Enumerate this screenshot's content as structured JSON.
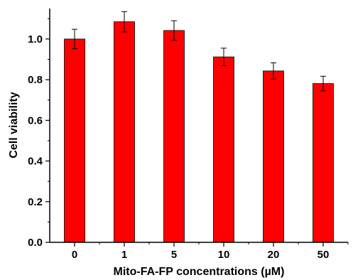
{
  "chart_data": {
    "type": "bar",
    "categories": [
      "0",
      "1",
      "5",
      "10",
      "20",
      "50"
    ],
    "values": [
      1.0,
      1.085,
      1.042,
      0.912,
      0.843,
      0.781
    ],
    "errors": [
      0.048,
      0.05,
      0.048,
      0.043,
      0.04,
      0.036
    ],
    "xlabel": "Mito-FA-FP concentrations (µM)",
    "ylabel": "Cell viability",
    "ylim": [
      0.0,
      1.15
    ],
    "yticks": [
      "0.0",
      "0.2",
      "0.4",
      "0.6",
      "0.8",
      "1.0"
    ],
    "ytick_values": [
      0.0,
      0.2,
      0.4,
      0.6,
      0.8,
      1.0
    ],
    "bar_color": "#ff0000",
    "grid": false,
    "legend": "none"
  }
}
